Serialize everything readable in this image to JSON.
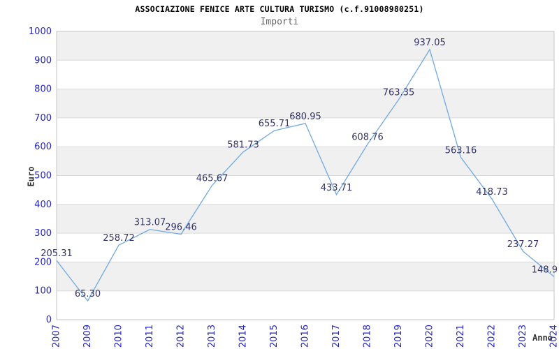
{
  "chart_data": {
    "type": "line",
    "title": "ASSOCIAZIONE FENICE ARTE CULTURA TURISMO (c.f.91008980251)",
    "subtitle": "Importi",
    "xlabel": "Anno",
    "ylabel": "Euro",
    "categories": [
      "2007",
      "2009",
      "2010",
      "2011",
      "2012",
      "2013",
      "2014",
      "2015",
      "2016",
      "2017",
      "2018",
      "2019",
      "2020",
      "2021",
      "2022",
      "2023",
      "2024"
    ],
    "values": [
      205.31,
      65.3,
      258.72,
      313.07,
      296.46,
      465.67,
      581.73,
      655.71,
      680.95,
      433.71,
      608.76,
      763.35,
      937.05,
      563.16,
      418.73,
      237.27,
      148.9
    ],
    "point_labels": [
      "205.31",
      "65.30",
      "258.72",
      "313.07",
      "296.46",
      "465.67",
      "581.73",
      "655.71",
      "680.95",
      "433.71",
      "608.76",
      "763.35",
      "937.05",
      "563.16",
      "418.73",
      "237.27",
      "148.9"
    ],
    "ylim": [
      0,
      1000
    ],
    "ytick_step": 100,
    "grid": "horizontal gridlines with alternating shaded bands",
    "legend": "none",
    "colors": {
      "line": "#79aee0",
      "tick_label": "#2323cc",
      "point_label": "#333366",
      "band": "#f0f0f0",
      "gridline": "#d9d9d9",
      "plot_border": "#c6c6c6",
      "title": "#000000",
      "subtitle": "#666666",
      "axis_title": "#333333"
    }
  }
}
